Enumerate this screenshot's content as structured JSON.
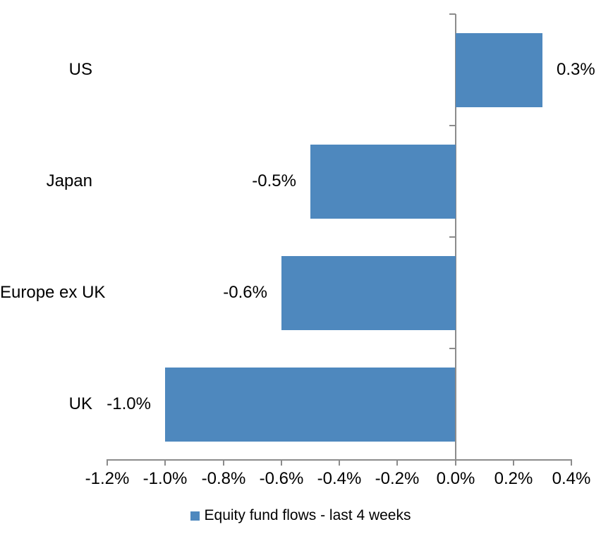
{
  "chart_data": {
    "type": "bar",
    "orientation": "horizontal",
    "title": "",
    "categories": [
      "US",
      "Japan",
      "Europe ex UK",
      "UK"
    ],
    "values": [
      0.3,
      -0.5,
      -0.6,
      -1.0
    ],
    "value_labels": [
      "0.3%",
      "-0.5%",
      "-0.6%",
      "-1.0%"
    ],
    "series": [
      {
        "name": "Equity fund flows - last 4 weeks",
        "values": [
          0.3,
          -0.5,
          -0.6,
          -1.0
        ]
      }
    ],
    "xlabel": "",
    "ylabel": "",
    "xlim": [
      -1.2,
      0.4
    ],
    "x_tick_values": [
      -1.2,
      -1.0,
      -0.8,
      -0.6,
      -0.4,
      -0.2,
      0.0,
      0.2,
      0.4
    ],
    "x_tick_labels": [
      "-1.2%",
      "-1.0%",
      "-0.8%",
      "-0.6%",
      "-0.4%",
      "-0.2%",
      "0.0%",
      "0.2%",
      "0.4%"
    ],
    "grid": false,
    "legend_position": "bottom",
    "legend": {
      "label": "Equity fund flows - last 4 weeks",
      "swatch_color": "#4E88BE"
    },
    "colors": {
      "bar": "#4E88BE",
      "axis": "#8C8C8C",
      "text": "#000000",
      "background": "#FFFFFF"
    }
  }
}
